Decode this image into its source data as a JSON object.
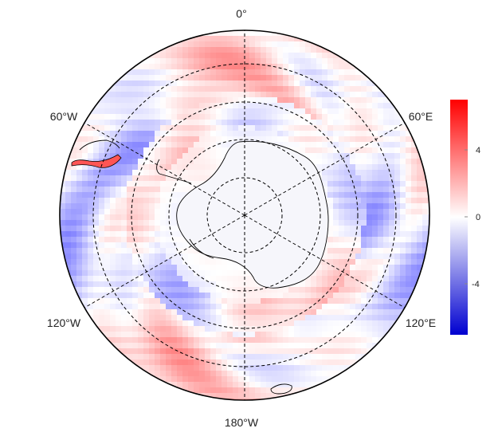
{
  "map": {
    "projection": "south-polar-stereographic",
    "longitude_labels": {
      "top": "0°",
      "upper_left": "60°W",
      "upper_right": "60°E",
      "lower_left": "120°W",
      "lower_right": "120°E",
      "bottom": "180°W"
    },
    "graticule": "dashed"
  },
  "colorbar": {
    "tick_labels": [
      "4",
      "0",
      "-4"
    ],
    "min_color": "#0000d0",
    "mid_color": "#ffffff",
    "max_color": "#ff0000"
  }
}
